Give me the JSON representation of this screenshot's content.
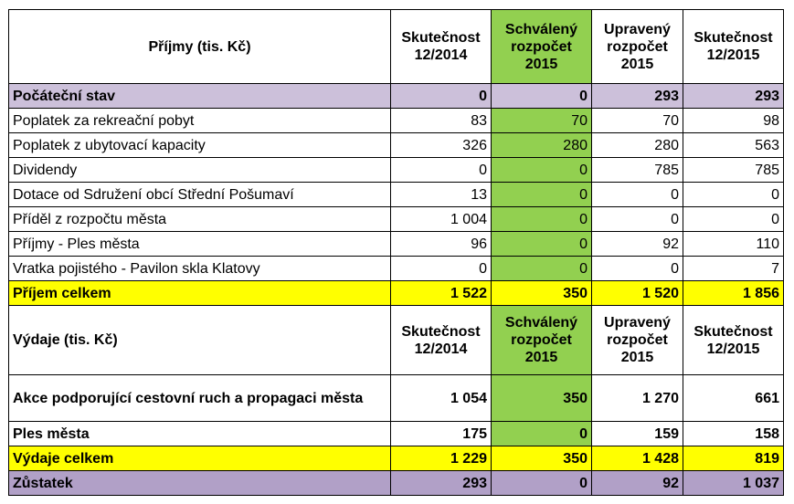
{
  "income_header": {
    "label": "Příjmy (tis. Kč)",
    "col1": "Skutečnost 12/2014",
    "col2": "Schválený rozpočet 2015",
    "col3": "Upravený rozpočet 2015",
    "col4": "Skutečnost 12/2015"
  },
  "opening": {
    "label": "Počáteční stav",
    "v": [
      "0",
      "0",
      "293",
      "293"
    ]
  },
  "income_rows": [
    {
      "label": "Poplatek za rekreační pobyt",
      "v": [
        "83",
        "70",
        "70",
        "98"
      ]
    },
    {
      "label": "Poplatek z ubytovací kapacity",
      "v": [
        "326",
        "280",
        "280",
        "563"
      ]
    },
    {
      "label": "Dividendy",
      "v": [
        "0",
        "0",
        "785",
        "785"
      ]
    },
    {
      "label": "Dotace od Sdružení obcí Střední Pošumaví",
      "v": [
        "13",
        "0",
        "0",
        "0"
      ]
    },
    {
      "label": "Příděl z rozpočtu města",
      "v": [
        "1 004",
        "0",
        "0",
        "0"
      ]
    },
    {
      "label": "Příjmy - Ples města",
      "v": [
        "96",
        "0",
        "92",
        "110"
      ]
    },
    {
      "label": "Vratka pojistého - Pavilon skla Klatovy",
      "v": [
        "0",
        "0",
        "0",
        "7"
      ]
    }
  ],
  "income_total": {
    "label": "Příjem celkem",
    "v": [
      "1 522",
      "350",
      "1 520",
      "1 856"
    ]
  },
  "expense_header": {
    "label": "Výdaje (tis. Kč)",
    "col1": "Skutečnost 12/2014",
    "col2": "Schválený rozpočet 2015",
    "col3": "Upravený rozpočet 2015",
    "col4": "Skutečnost 12/2015"
  },
  "expense_rows": [
    {
      "label": "Akce podporující cestovní ruch a propagaci města",
      "v": [
        "1 054",
        "350",
        "1 270",
        "661"
      ]
    },
    {
      "label": "Ples města",
      "v": [
        "175",
        "0",
        "159",
        "158"
      ]
    }
  ],
  "expense_total": {
    "label": "Výdaje celkem",
    "v": [
      "1 229",
      "350",
      "1 428",
      "819"
    ]
  },
  "balance": {
    "label": "Zůstatek",
    "v": [
      "293",
      "0",
      "92",
      "1 037"
    ]
  },
  "colors": {
    "approved_column": "#92d050",
    "totals_row": "#ffff00",
    "opening_row": "#ccc0da",
    "balance_row": "#b1a0c7"
  }
}
